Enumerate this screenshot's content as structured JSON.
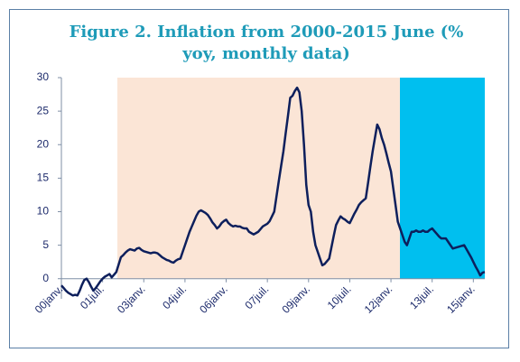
{
  "chart_data": {
    "type": "line",
    "title": "Figure 2. Inflation from 2000-2015 June (% yoy, monthly data)",
    "categories": [
      "00janv.",
      null,
      null,
      null,
      null,
      null,
      null,
      null,
      null,
      null,
      null,
      null,
      null,
      null,
      null,
      null,
      null,
      null,
      "01juil.",
      null,
      null,
      null,
      null,
      null,
      null,
      null,
      null,
      null,
      null,
      null,
      null,
      null,
      null,
      null,
      null,
      null,
      "03janv.",
      null,
      null,
      null,
      null,
      null,
      null,
      null,
      null,
      null,
      null,
      null,
      null,
      null,
      null,
      null,
      null,
      null,
      "04juil.",
      null,
      null,
      null,
      null,
      null,
      null,
      null,
      null,
      null,
      null,
      null,
      null,
      null,
      null,
      null,
      null,
      null,
      "06janv.",
      null,
      null,
      null,
      null,
      null,
      null,
      null,
      null,
      null,
      null,
      null,
      null,
      null,
      null,
      null,
      null,
      null,
      "07juil.",
      null,
      null,
      null,
      null,
      null,
      null,
      null,
      null,
      null,
      null,
      null,
      null,
      null,
      null,
      null,
      null,
      null,
      "09janv.",
      null,
      null,
      null,
      null,
      null,
      null,
      null,
      null,
      null,
      null,
      null,
      null,
      null,
      null,
      null,
      null,
      null,
      "10juil.",
      null,
      null,
      null,
      null,
      null,
      null,
      null,
      null,
      null,
      null,
      null,
      null,
      null,
      null,
      null,
      null,
      null,
      "12janv.",
      null,
      null,
      null,
      null,
      null,
      null,
      null,
      null,
      null,
      null,
      null,
      null,
      null,
      null,
      null,
      null,
      null,
      "13juil.",
      null,
      null,
      null,
      null,
      null,
      null,
      null,
      null,
      null,
      null,
      null,
      null,
      null,
      null,
      null,
      null,
      null,
      "15janv.",
      null,
      null,
      null,
      null,
      null
    ],
    "values": [
      -1,
      -1.4,
      -1.8,
      -2.1,
      -2.3,
      -2.5,
      -2.4,
      -2.5,
      -1.8,
      -0.9,
      -0.2,
      0,
      -0.5,
      -1.2,
      -1.8,
      -1.4,
      -0.9,
      -0.4,
      0,
      0.3,
      0.5,
      0.7,
      0.2,
      0.6,
      1.0,
      2.1,
      3.2,
      3.5,
      3.9,
      4.2,
      4.4,
      4.3,
      4.2,
      4.5,
      4.6,
      4.3,
      4.1,
      4.0,
      3.9,
      3.8,
      3.9,
      3.9,
      3.8,
      3.5,
      3.2,
      3.0,
      2.8,
      2.7,
      2.5,
      2.4,
      2.7,
      2.9,
      3.0,
      4.0,
      5.0,
      6.0,
      7.0,
      7.8,
      8.6,
      9.4,
      10.0,
      10.2,
      10.0,
      9.8,
      9.5,
      9.0,
      8.4,
      8.0,
      7.5,
      7.8,
      8.3,
      8.6,
      8.8,
      8.3,
      8.0,
      7.8,
      7.9,
      7.8,
      7.8,
      7.6,
      7.5,
      7.5,
      7.0,
      6.8,
      6.6,
      6.8,
      7.0,
      7.4,
      7.8,
      8.0,
      8.2,
      8.6,
      9.3,
      10.0,
      12.3,
      14.6,
      16.8,
      19.0,
      21.7,
      24.3,
      27.0,
      27.3,
      28.0,
      28.5,
      27.8,
      25.0,
      20.0,
      14.0,
      11.0,
      10.0,
      7.0,
      5.0,
      4.0,
      3.0,
      2.0,
      2.2,
      2.6,
      3.0,
      4.7,
      6.4,
      8.0,
      8.7,
      9.3,
      9.0,
      8.8,
      8.5,
      8.3,
      9.0,
      9.7,
      10.3,
      11.0,
      11.4,
      11.7,
      12.0,
      14.3,
      16.7,
      19.0,
      21.0,
      23.0,
      22.3,
      21.0,
      20.0,
      18.7,
      17.3,
      16.0,
      13.5,
      11.0,
      8.5,
      7.5,
      6.5,
      5.5,
      5.0,
      6.0,
      7.0,
      7.0,
      7.2,
      7.0,
      7.0,
      7.2,
      7.0,
      7.0,
      7.3,
      7.5,
      7.1,
      6.7,
      6.3,
      6.0,
      6.0,
      6.0,
      5.5,
      5.0,
      4.5,
      4.6,
      4.7,
      4.8,
      4.9,
      5.0,
      4.4,
      3.8,
      3.2,
      2.5,
      1.8,
      1.2,
      0.5,
      0.9,
      1.0
    ],
    "color": "#0d1f5c",
    "ylim": [
      -3,
      30
    ],
    "yticks": [
      0,
      5,
      10,
      15,
      20,
      25,
      30
    ]
  }
}
